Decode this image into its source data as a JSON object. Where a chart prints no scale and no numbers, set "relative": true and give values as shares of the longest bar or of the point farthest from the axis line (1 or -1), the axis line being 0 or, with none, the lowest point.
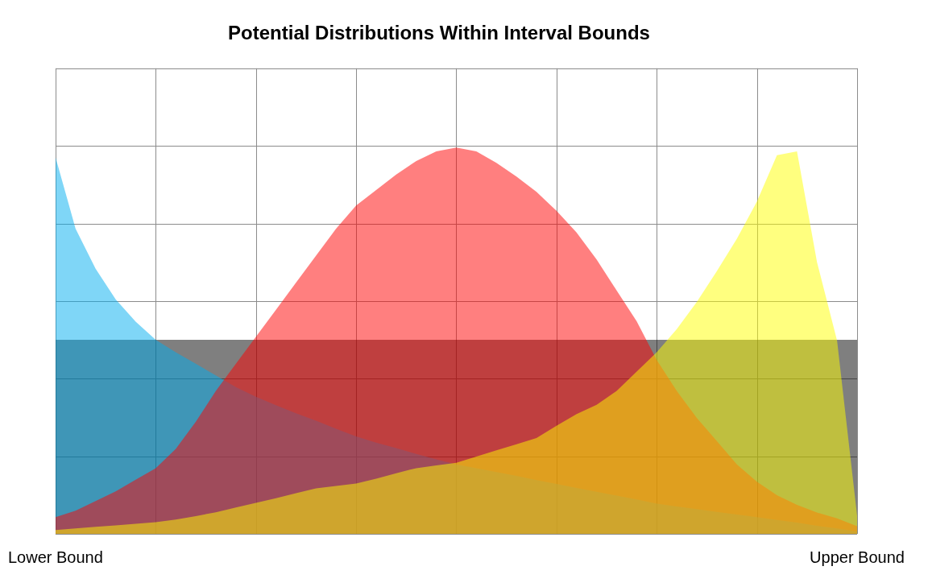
{
  "chart_data": {
    "type": "area",
    "title": "Potential Distributions Within Interval Bounds",
    "relative": true,
    "grid": true,
    "categories": [
      "Lower Bound",
      null,
      null,
      null,
      null,
      null,
      null,
      null,
      null,
      null,
      null,
      null,
      null,
      null,
      null,
      null,
      null,
      null,
      null,
      null,
      null,
      null,
      null,
      null,
      null,
      null,
      null,
      null,
      null,
      null,
      null,
      null,
      null,
      null,
      null,
      null,
      null,
      null,
      null,
      null,
      "Upper Bound"
    ],
    "series": [
      {
        "color": "#000000",
        "values": [
          0.502,
          0.502,
          0.502,
          0.502,
          0.502,
          0.502,
          0.502,
          0.502,
          0.502,
          0.502,
          0.502,
          0.502,
          0.502,
          0.502,
          0.502,
          0.502,
          0.502,
          0.502,
          0.502,
          0.502,
          0.502,
          0.502,
          0.502,
          0.502,
          0.502,
          0.502,
          0.502,
          0.502,
          0.502,
          0.502,
          0.502,
          0.502,
          0.502,
          0.502,
          0.502,
          0.502,
          0.502,
          0.502,
          0.502,
          0.502,
          0.502
        ]
      },
      {
        "color": "#00adef",
        "values": [
          0.975,
          0.79,
          0.686,
          0.607,
          0.549,
          0.502,
          0.47,
          0.44,
          0.41,
          0.38,
          0.355,
          0.333,
          0.312,
          0.293,
          0.272,
          0.252,
          0.236,
          0.222,
          0.207,
          0.193,
          0.18,
          0.17,
          0.16,
          0.15,
          0.139,
          0.129,
          0.119,
          0.109,
          0.099,
          0.089,
          0.078,
          0.071,
          0.064,
          0.057,
          0.05,
          0.043,
          0.036,
          0.029,
          0.021,
          0.014,
          0.006
        ]
      },
      {
        "color": "#ff0000",
        "values": [
          0.043,
          0.06,
          0.085,
          0.11,
          0.14,
          0.17,
          0.22,
          0.29,
          0.37,
          0.44,
          0.51,
          0.58,
          0.65,
          0.72,
          0.79,
          0.85,
          0.89,
          0.93,
          0.965,
          0.99,
          1.0,
          0.99,
          0.96,
          0.925,
          0.885,
          0.836,
          0.78,
          0.71,
          0.63,
          0.55,
          0.45,
          0.37,
          0.3,
          0.24,
          0.18,
          0.135,
          0.1,
          0.075,
          0.055,
          0.04,
          0.02
        ]
      },
      {
        "color": "#ffff00",
        "values": [
          0.01,
          0.014,
          0.018,
          0.022,
          0.026,
          0.03,
          0.037,
          0.046,
          0.056,
          0.068,
          0.08,
          0.092,
          0.105,
          0.118,
          0.124,
          0.13,
          0.143,
          0.157,
          0.17,
          0.177,
          0.184,
          0.2,
          0.216,
          0.232,
          0.248,
          0.28,
          0.31,
          0.334,
          0.37,
          0.42,
          0.47,
          0.53,
          0.6,
          0.68,
          0.764,
          0.86,
          0.98,
          0.99,
          0.703,
          0.5,
          0.047
        ]
      }
    ]
  }
}
